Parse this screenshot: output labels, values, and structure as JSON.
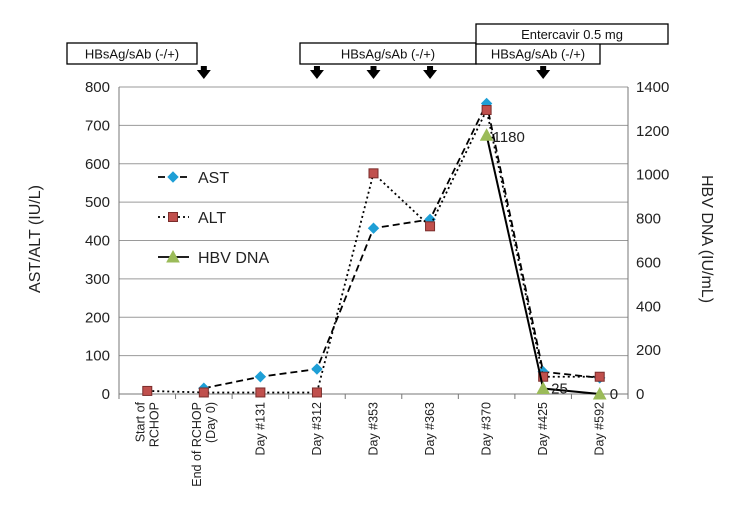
{
  "chart_data": {
    "type": "line",
    "categories": [
      [
        "Start of",
        "RCHOP"
      ],
      [
        "End of RCHOP",
        "(Day 0)"
      ],
      [
        "Day #131"
      ],
      [
        "Day #312"
      ],
      [
        "Day #353"
      ],
      [
        "Day #363"
      ],
      [
        "Day #370"
      ],
      [
        "Day #425"
      ],
      [
        "Day #592"
      ]
    ],
    "ylabel": "AST/ALT (IU/L)",
    "y2label": "HBV DNA (IU/mL)",
    "ylim": [
      0,
      800
    ],
    "yticks": [
      0,
      100,
      200,
      300,
      400,
      500,
      600,
      700,
      800
    ],
    "y2lim": [
      0,
      1400
    ],
    "y2ticks": [
      0,
      200,
      400,
      600,
      800,
      1000,
      1200,
      1400
    ],
    "grid": true,
    "legend_position": "left-middle",
    "series": [
      {
        "name": "AST",
        "axis": "left",
        "color": "#1e9fd6",
        "marker": "diamond",
        "line": "dashed",
        "values": [
          null,
          15,
          45,
          65,
          432,
          455,
          757,
          58,
          42
        ]
      },
      {
        "name": "ALT",
        "axis": "left",
        "color": "#c0504d",
        "marker": "square",
        "line": "dotted",
        "values": [
          8,
          4,
          4,
          4,
          575,
          437,
          740,
          45,
          45
        ]
      },
      {
        "name": "HBV DNA",
        "axis": "right",
        "color": "#9bbb59",
        "marker": "triangle",
        "line": "solid",
        "values": [
          null,
          null,
          null,
          null,
          null,
          null,
          1180,
          25,
          0
        ]
      }
    ],
    "data_labels": [
      {
        "series": 2,
        "index": 6,
        "text": "1180"
      },
      {
        "series": 2,
        "index": 7,
        "text": "25"
      },
      {
        "series": 2,
        "index": 8,
        "text": "0"
      }
    ],
    "annotations": [
      {
        "text": "HBsAg/sAb (-/+)",
        "arrows_at": [
          1
        ]
      },
      {
        "text": "HBsAg/sAb (-/+)",
        "arrows_at": [
          3,
          4,
          5
        ]
      },
      {
        "text": "HBsAg/sAb (-/+)",
        "arrows_at": [
          7
        ]
      },
      {
        "text": "Entercavir 0.5 mg",
        "arrows_at": []
      }
    ]
  }
}
